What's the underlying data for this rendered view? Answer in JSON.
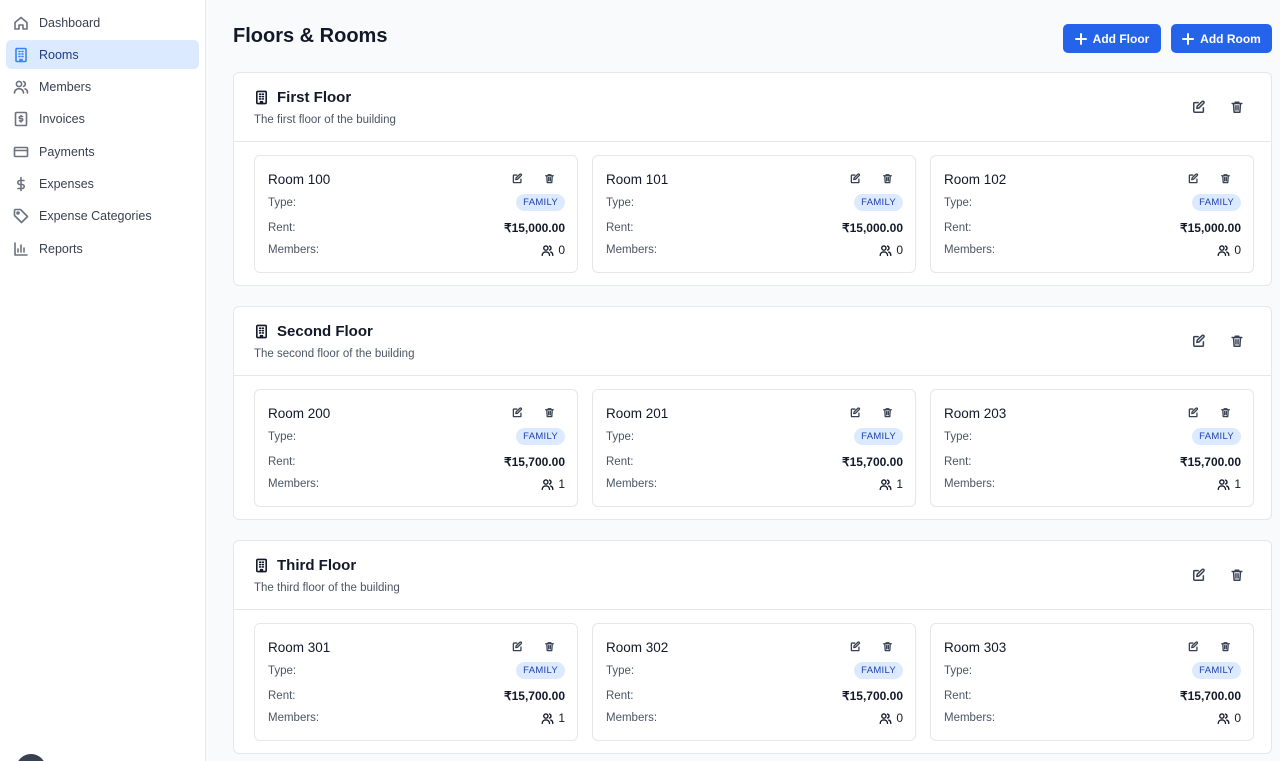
{
  "sidebar": {
    "items": [
      {
        "label": "Dashboard",
        "icon": "home-icon",
        "active": false
      },
      {
        "label": "Rooms",
        "icon": "building-icon",
        "active": true
      },
      {
        "label": "Members",
        "icon": "users-icon",
        "active": false
      },
      {
        "label": "Invoices",
        "icon": "invoice-icon",
        "active": false
      },
      {
        "label": "Payments",
        "icon": "credit-card-icon",
        "active": false
      },
      {
        "label": "Expenses",
        "icon": "dollar-icon",
        "active": false
      },
      {
        "label": "Expense Categories",
        "icon": "tag-icon",
        "active": false
      },
      {
        "label": "Reports",
        "icon": "bar-chart-icon",
        "active": false
      }
    ]
  },
  "header": {
    "title": "Floors & Rooms",
    "add_floor_label": "Add Floor",
    "add_room_label": "Add Room"
  },
  "labels": {
    "type": "Type:",
    "rent": "Rent:",
    "members": "Members:"
  },
  "floors": [
    {
      "name": "First Floor",
      "description": "The first floor of the building",
      "rooms": [
        {
          "name": "Room 100",
          "type": "FAMILY",
          "rent": "₹15,000.00",
          "members": "0"
        },
        {
          "name": "Room 101",
          "type": "FAMILY",
          "rent": "₹15,000.00",
          "members": "0"
        },
        {
          "name": "Room 102",
          "type": "FAMILY",
          "rent": "₹15,000.00",
          "members": "0"
        }
      ]
    },
    {
      "name": "Second Floor",
      "description": "The second floor of the building",
      "rooms": [
        {
          "name": "Room 200",
          "type": "FAMILY",
          "rent": "₹15,700.00",
          "members": "1"
        },
        {
          "name": "Room 201",
          "type": "FAMILY",
          "rent": "₹15,700.00",
          "members": "1"
        },
        {
          "name": "Room 203",
          "type": "FAMILY",
          "rent": "₹15,700.00",
          "members": "1"
        }
      ]
    },
    {
      "name": "Third Floor",
      "description": "The third floor of the building",
      "rooms": [
        {
          "name": "Room 301",
          "type": "FAMILY",
          "rent": "₹15,700.00",
          "members": "1"
        },
        {
          "name": "Room 302",
          "type": "FAMILY",
          "rent": "₹15,700.00",
          "members": "0"
        },
        {
          "name": "Room 303",
          "type": "FAMILY",
          "rent": "₹15,700.00",
          "members": "0"
        }
      ]
    }
  ],
  "colors": {
    "accent": "#2563eb",
    "active_nav_bg": "#dbeafe",
    "badge_bg": "#dbeafe",
    "badge_text": "#1e40af"
  }
}
